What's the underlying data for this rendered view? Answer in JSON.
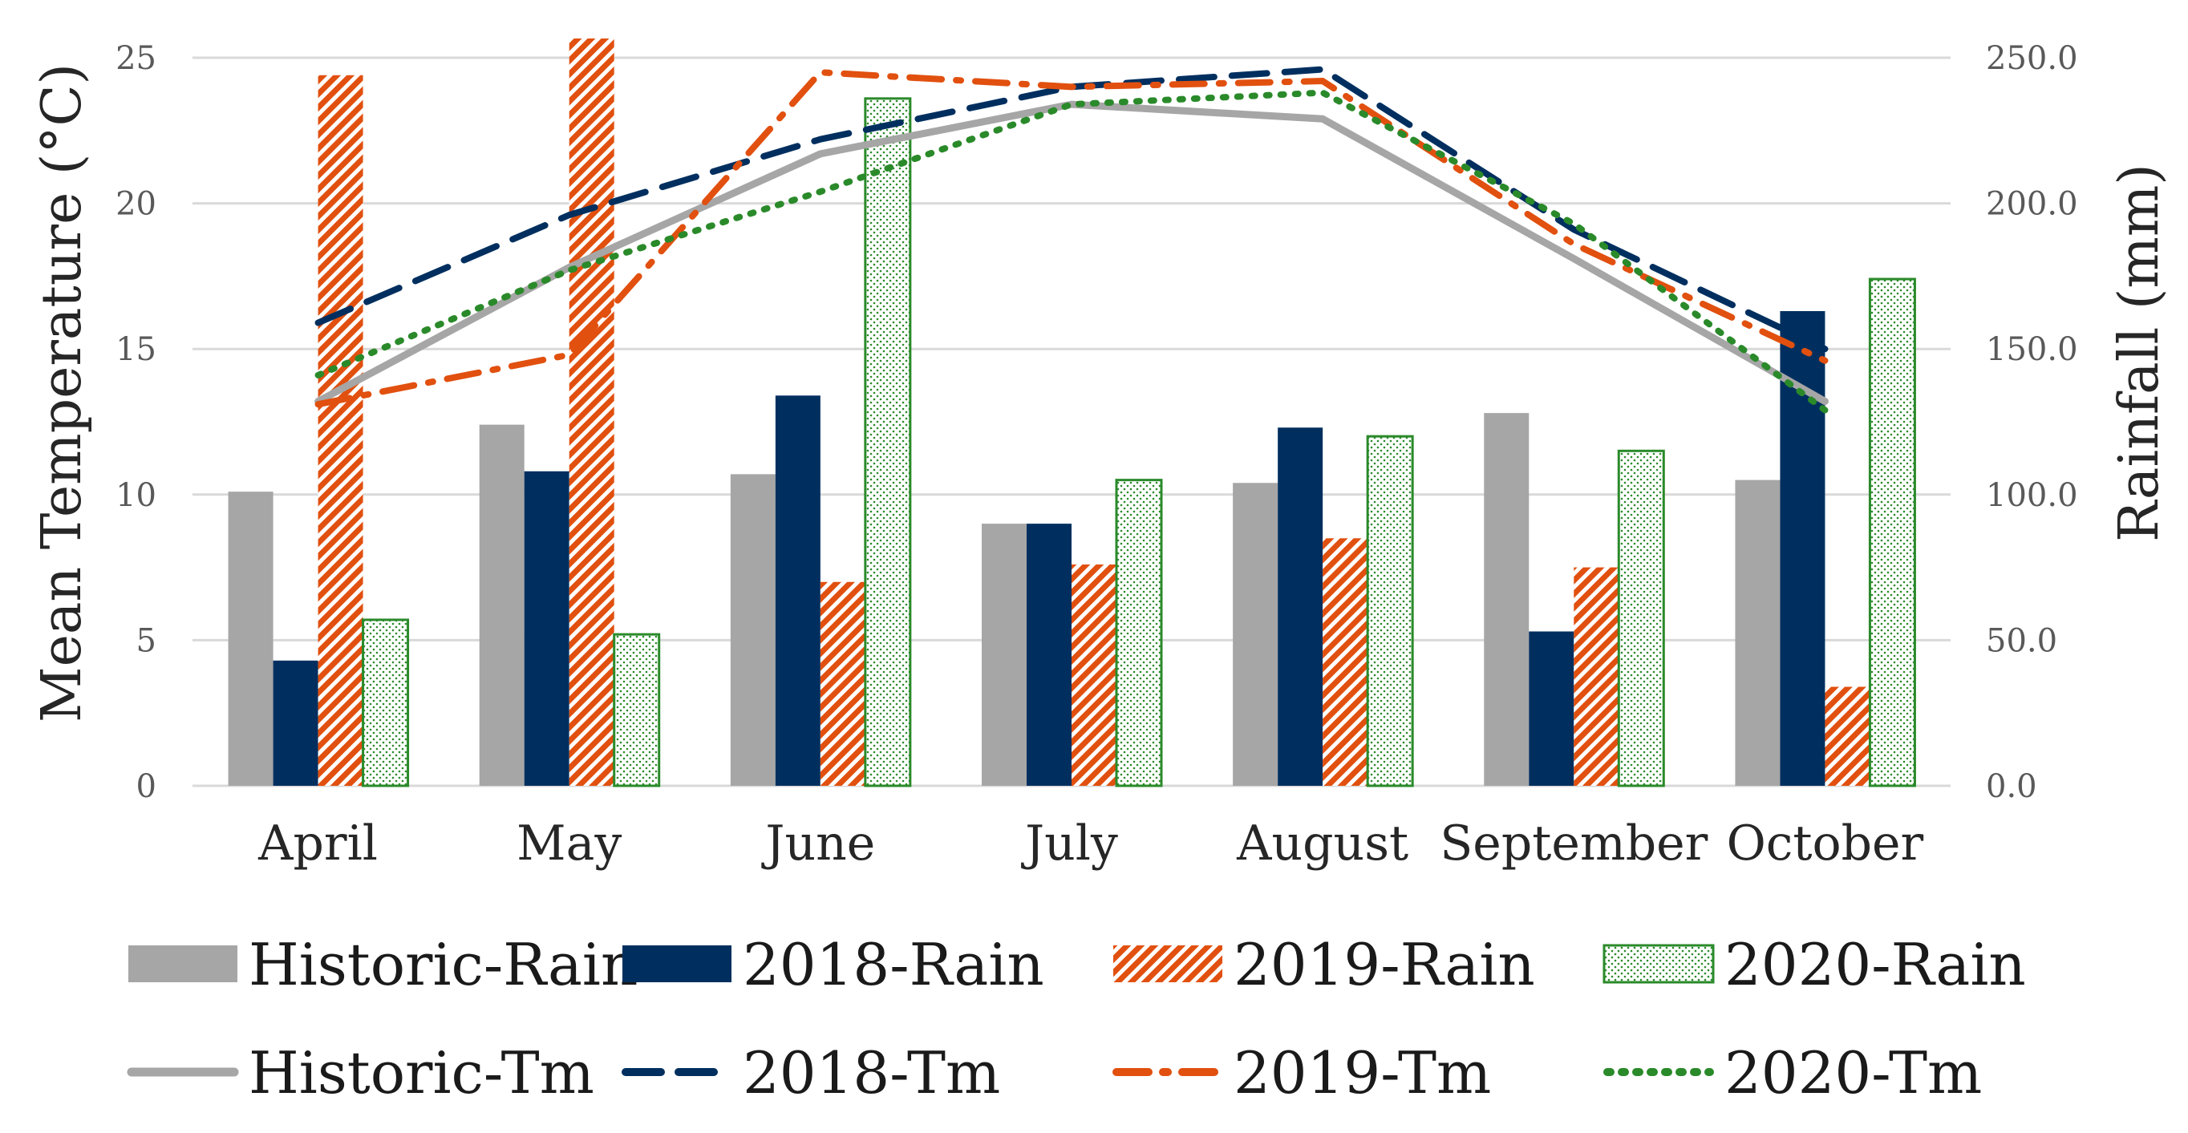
{
  "chart_data": {
    "type": "bar",
    "title": "",
    "categories": [
      "April",
      "May",
      "June",
      "July",
      "August",
      "September",
      "October"
    ],
    "left_axis": {
      "label": "Mean Temperature (°C)",
      "ylim": [
        0,
        25
      ],
      "ticks": [
        "0",
        "5",
        "10",
        "15",
        "20",
        "25"
      ]
    },
    "right_axis": {
      "label": "Rainfall (mm)",
      "ylim": [
        0,
        250
      ],
      "ticks": [
        "0.0",
        "50.0",
        "100.0",
        "150.0",
        "200.0",
        "250.0"
      ]
    },
    "grid": true,
    "legend_position": "bottom",
    "bar_series": [
      {
        "name": "Historic-Rain",
        "axis": "right",
        "color": "#a6a6a6",
        "pattern": "solid",
        "values": [
          101,
          124,
          107,
          90,
          104,
          128,
          105
        ]
      },
      {
        "name": "2018-Rain",
        "axis": "right",
        "color": "#002f5f",
        "pattern": "solid",
        "values": [
          43,
          108,
          134,
          90,
          123,
          53,
          163
        ]
      },
      {
        "name": "2019-Rain",
        "axis": "right",
        "color": "#e1500f",
        "pattern": "hatch",
        "values": [
          244,
          257,
          70,
          76,
          85,
          75,
          34
        ]
      },
      {
        "name": "2020-Rain",
        "axis": "right",
        "color": "#2a8a2a",
        "pattern": "dots",
        "values": [
          57,
          52,
          236,
          105,
          120,
          115,
          174
        ]
      }
    ],
    "line_series": [
      {
        "name": "Historic-Tm",
        "axis": "left",
        "color": "#a6a6a6",
        "style": "solid",
        "values": [
          13.2,
          17.8,
          21.7,
          23.4,
          22.9,
          18.1,
          13.2
        ]
      },
      {
        "name": "2018-Tm",
        "axis": "left",
        "color": "#002f5f",
        "style": "dash",
        "values": [
          15.9,
          19.6,
          22.2,
          24.0,
          24.6,
          19.1,
          15.0
        ]
      },
      {
        "name": "2019-Tm",
        "axis": "left",
        "color": "#e1500f",
        "style": "dashdot",
        "values": [
          13.1,
          14.8,
          24.5,
          24.0,
          24.2,
          18.6,
          14.6
        ]
      },
      {
        "name": "2020-Tm",
        "axis": "left",
        "color": "#2a8a2a",
        "style": "dot",
        "values": [
          14.1,
          17.7,
          20.4,
          23.4,
          23.8,
          19.3,
          12.9
        ]
      }
    ]
  }
}
